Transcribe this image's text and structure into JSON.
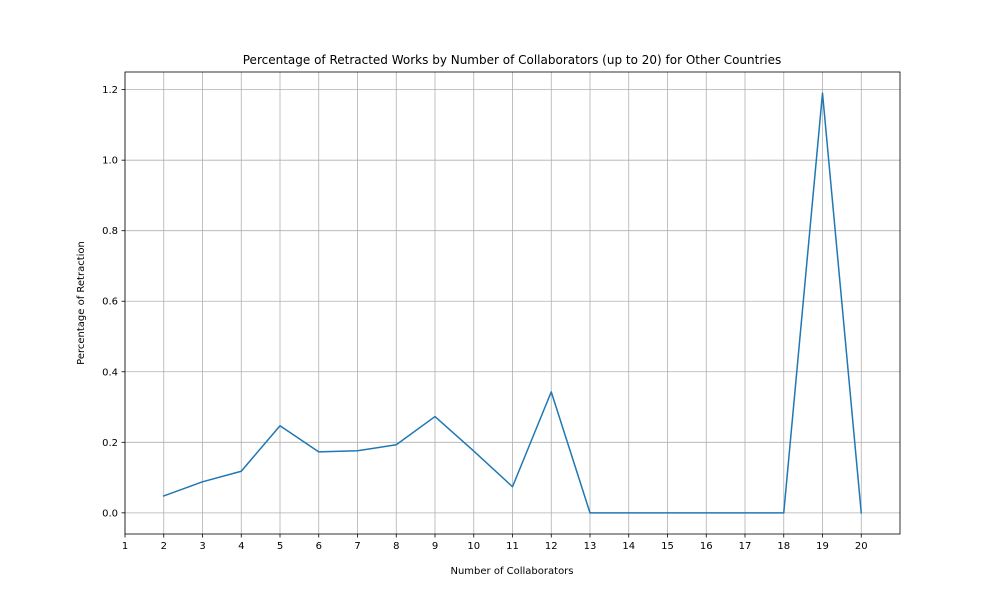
{
  "chart_data": {
    "type": "line",
    "title": "Percentage of Retracted Works by Number of Collaborators (up to 20) for Other Countries",
    "xlabel": "Number of Collaborators",
    "ylabel": "Percentage of Retraction",
    "x": [
      2,
      3,
      4,
      5,
      6,
      7,
      8,
      9,
      10,
      11,
      12,
      13,
      14,
      15,
      16,
      17,
      18,
      19,
      20
    ],
    "series": [
      {
        "values": [
          0.048,
          0.088,
          0.118,
          0.247,
          0.173,
          0.176,
          0.193,
          0.273,
          0.175,
          0.074,
          0.343,
          0.0,
          0.0,
          0.0,
          0.0,
          0.0,
          0.0,
          1.19,
          0.0
        ],
        "color": "#1f77b4"
      }
    ],
    "xticks": [
      "1",
      "2",
      "3",
      "4",
      "5",
      "6",
      "7",
      "8",
      "9",
      "10",
      "11",
      "12",
      "13",
      "14",
      "15",
      "16",
      "17",
      "18",
      "19",
      "20"
    ],
    "yticks": [
      "0.0",
      "0.2",
      "0.4",
      "0.6",
      "0.8",
      "1.0",
      "1.2"
    ],
    "xlim": [
      1,
      21
    ],
    "ylim": [
      -0.06,
      1.25
    ],
    "grid": true
  }
}
